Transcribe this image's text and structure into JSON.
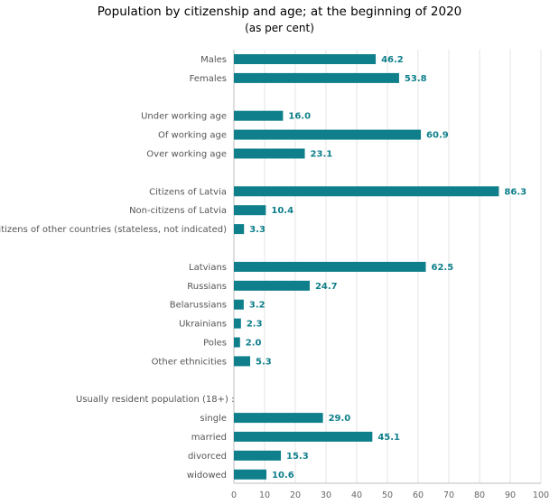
{
  "chart_data": {
    "type": "bar",
    "orientation": "horizontal",
    "title": "Population by citizenship and age; at the beginning of 2020",
    "subtitle": "(as per cent)",
    "bar_color": "#0e7f8b",
    "value_label_color": "#0e7f8b",
    "xlim": [
      0,
      100
    ],
    "xticks": [
      "0",
      "10",
      "20",
      "30",
      "40",
      "50",
      "60",
      "70",
      "80",
      "90",
      "100"
    ],
    "grid": true,
    "rows": [
      {
        "label": "Males",
        "value": 46.2,
        "value_text": "46.2"
      },
      {
        "label": "Females",
        "value": 53.8,
        "value_text": "53.8"
      },
      {
        "label": "",
        "value": null,
        "value_text": ""
      },
      {
        "label": "Under working age",
        "value": 16.0,
        "value_text": "16.0"
      },
      {
        "label": "Of working age",
        "value": 60.9,
        "value_text": "60.9"
      },
      {
        "label": "Over working age",
        "value": 23.1,
        "value_text": "23.1"
      },
      {
        "label": "",
        "value": null,
        "value_text": ""
      },
      {
        "label": "Citizens of Latvia",
        "value": 86.3,
        "value_text": "86.3"
      },
      {
        "label": "Non-citizens of Latvia",
        "value": 10.4,
        "value_text": "10.4"
      },
      {
        "label": "Citizens of other countries (stateless, not indicated)",
        "value": 3.3,
        "value_text": "3.3"
      },
      {
        "label": "",
        "value": null,
        "value_text": ""
      },
      {
        "label": "Latvians",
        "value": 62.5,
        "value_text": "62.5"
      },
      {
        "label": "Russians",
        "value": 24.7,
        "value_text": "24.7"
      },
      {
        "label": "Belarussians",
        "value": 3.2,
        "value_text": "3.2"
      },
      {
        "label": "Ukrainians",
        "value": 2.3,
        "value_text": "2.3"
      },
      {
        "label": "Poles",
        "value": 2.0,
        "value_text": "2.0"
      },
      {
        "label": "Other ethnicities",
        "value": 5.3,
        "value_text": "5.3"
      },
      {
        "label": "",
        "value": null,
        "value_text": ""
      },
      {
        "label": "Usually resident population  (18+) :",
        "value": null,
        "value_text": "",
        "align": "left"
      },
      {
        "label": "single",
        "value": 29.0,
        "value_text": "29.0"
      },
      {
        "label": "married",
        "value": 45.1,
        "value_text": "45.1"
      },
      {
        "label": "divorced",
        "value": 15.3,
        "value_text": "15.3"
      },
      {
        "label": "widowed",
        "value": 10.6,
        "value_text": "10.6"
      }
    ]
  }
}
